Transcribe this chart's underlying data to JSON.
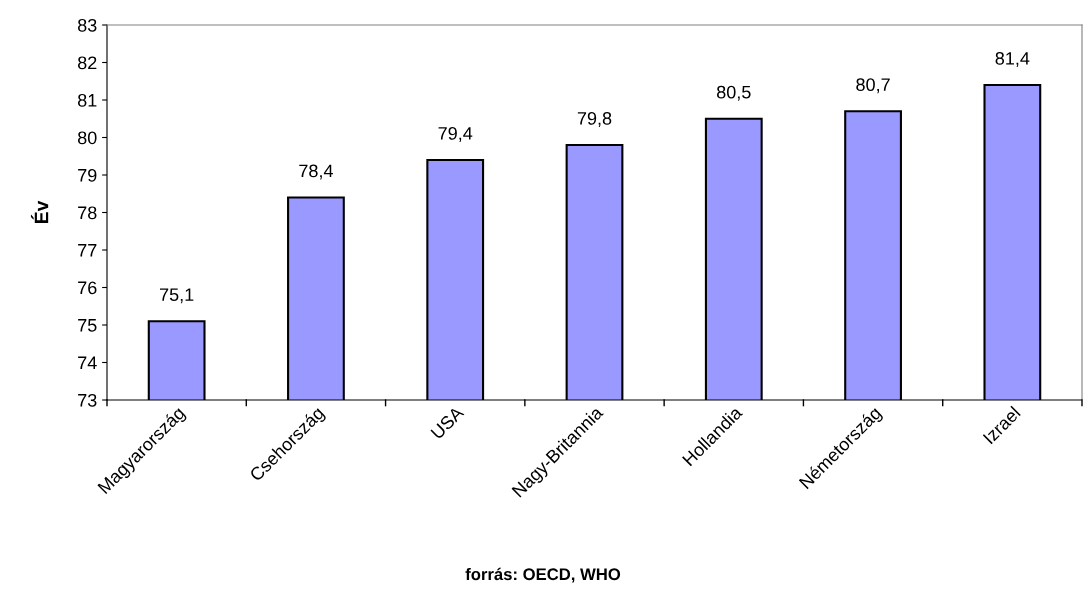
{
  "chart_data": {
    "type": "bar",
    "ylabel": "Év",
    "categories": [
      "Magyarország",
      "Csehország",
      "USA",
      "Nagy-Britannia",
      "Hollandia",
      "Németország",
      "Izrael"
    ],
    "values": [
      75.1,
      78.4,
      79.4,
      79.8,
      80.5,
      80.7,
      81.4
    ],
    "value_labels": [
      "75,1",
      "78,4",
      "79,4",
      "79,8",
      "80,5",
      "80,7",
      "81,4"
    ],
    "color": "#9999ff",
    "ylim": [
      73,
      83
    ],
    "yticks": [
      73,
      74,
      75,
      76,
      77,
      78,
      79,
      80,
      81,
      82,
      83
    ],
    "grid": false,
    "annotations": [
      "forrás: OECD, WHO"
    ]
  }
}
